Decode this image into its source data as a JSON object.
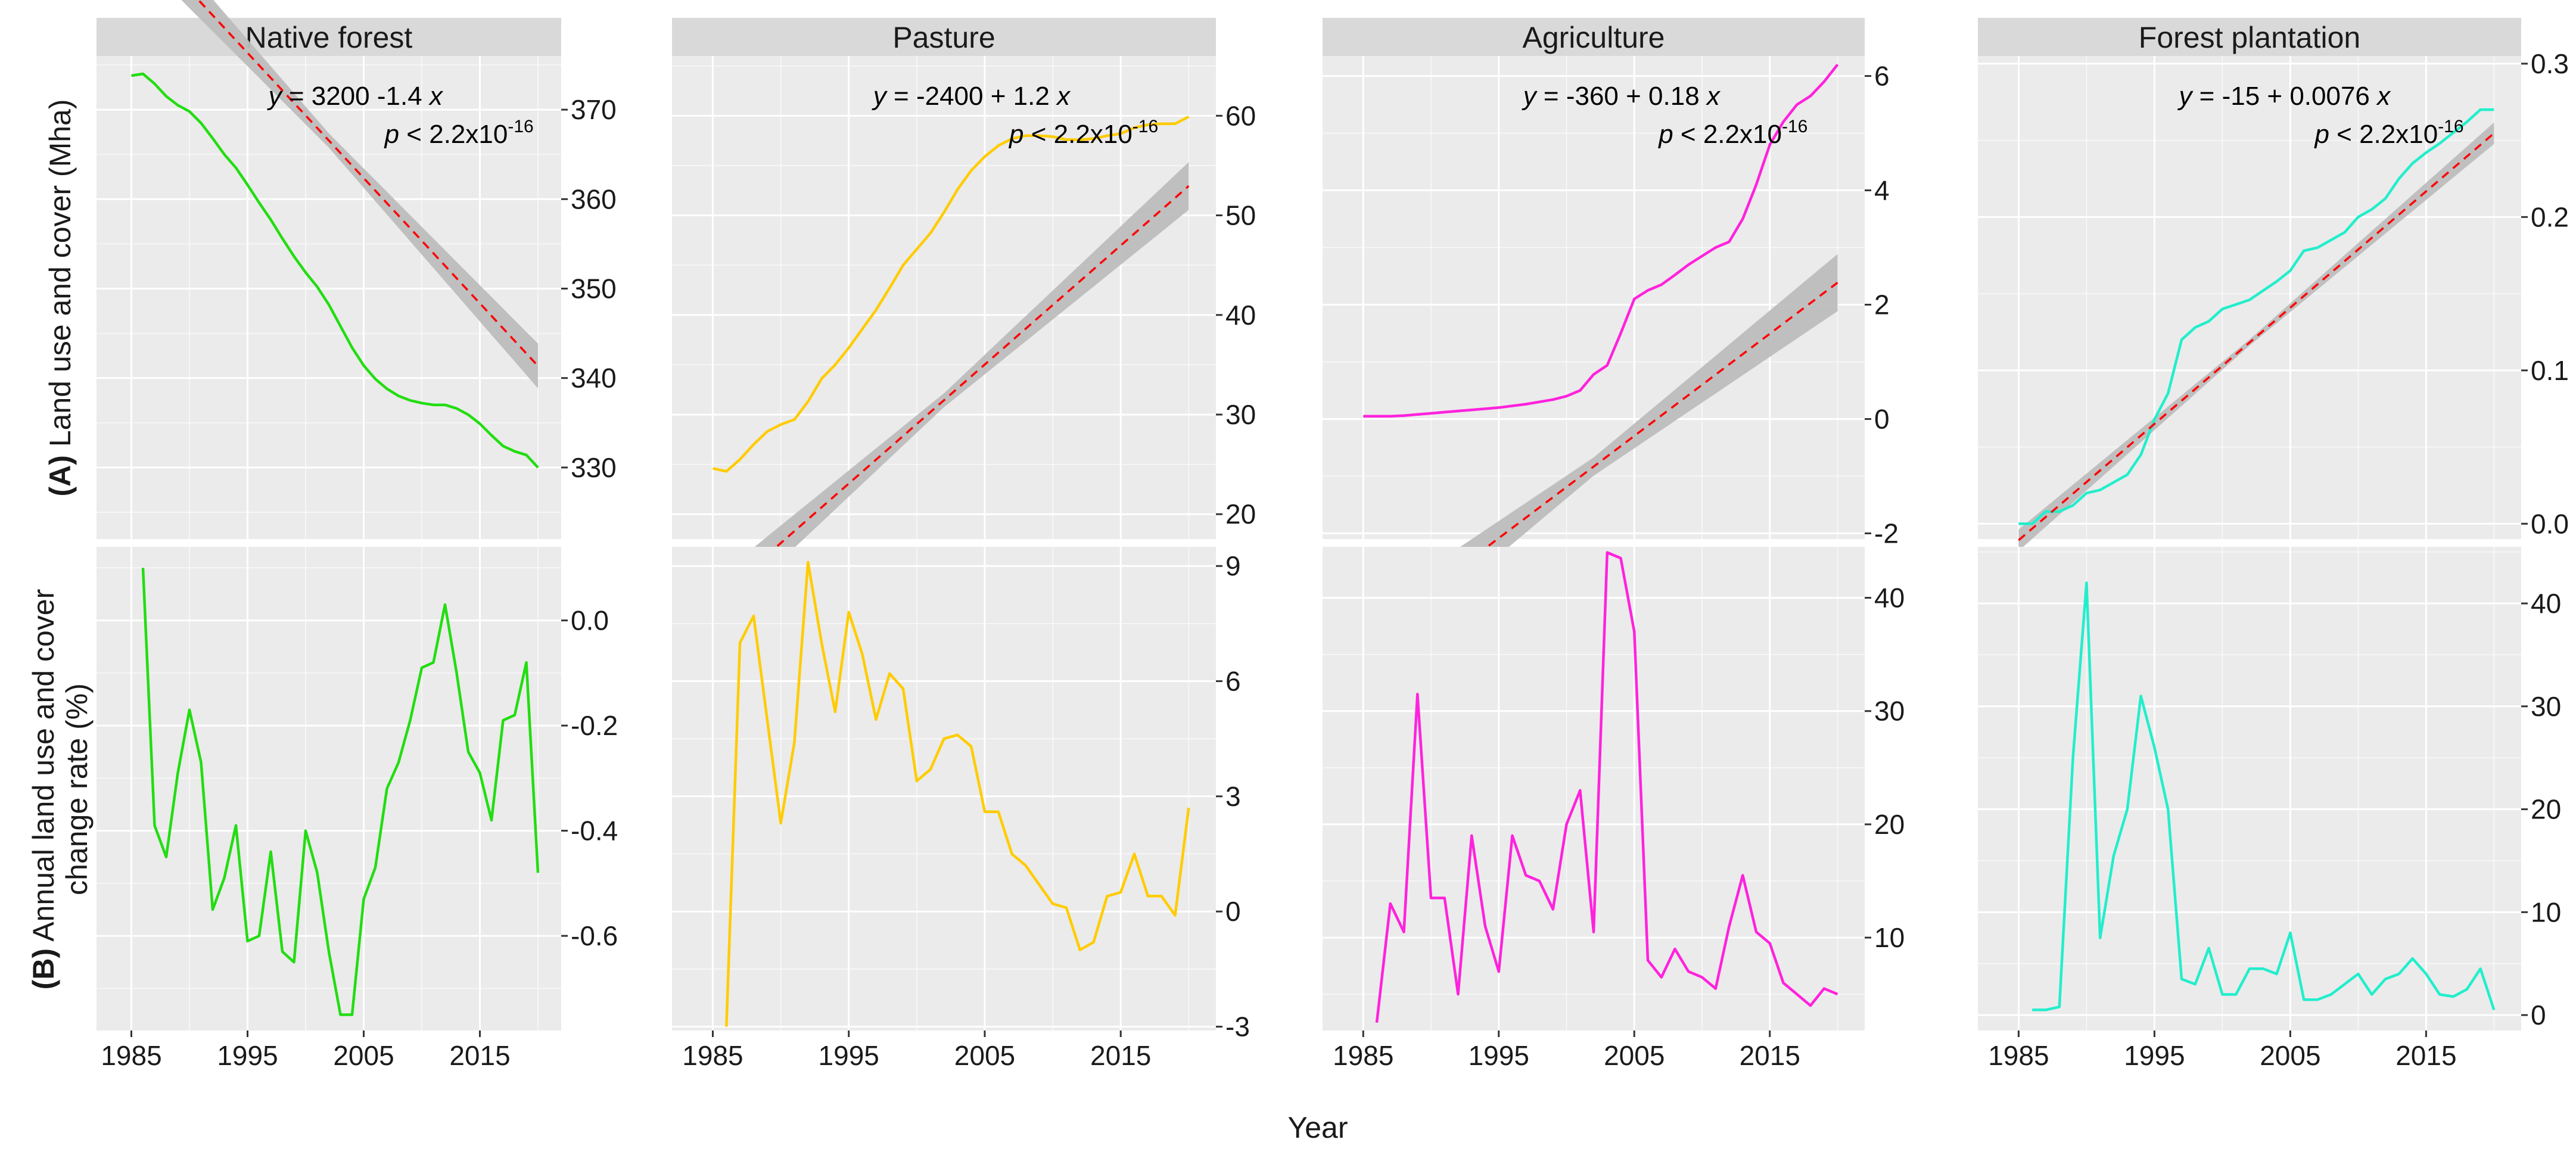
{
  "figure": {
    "x_axis_title": "Year",
    "row_labels": [
      {
        "tag": "(A)",
        "lines": [
          "Land use and cover (Mha)"
        ]
      },
      {
        "tag": "(B)",
        "lines": [
          "Annual land use and cover",
          "change rate (%)"
        ]
      }
    ]
  },
  "colors": {
    "panel_bg": "#ebebeb",
    "grid": "#ffffff",
    "strip_bg": "#d9d9d9",
    "regression_line": "#ff0000",
    "confidence_band": "#bdbdbd"
  },
  "chart_data": [
    {
      "facet": "Native forest",
      "color": "#22dd11",
      "xlim": [
        1982,
        2022
      ],
      "x_ticks": [
        1985,
        1995,
        2005,
        2015
      ],
      "area": {
        "type": "line",
        "ylim": [
          322,
          376
        ],
        "y_ticks": [
          330,
          340,
          350,
          360,
          370
        ],
        "equation_parts": [
          "y",
          " = 3200  -1.4 ",
          "x"
        ],
        "p_value": {
          "prefix": "p",
          "text": " < 2.2x10",
          "exponent": "-16"
        },
        "regression": {
          "intercept": 3169.35,
          "slope": -1.4,
          "band": [
            [
              1985,
              2.5
            ],
            [
              2002,
              0.8
            ],
            [
              2020,
              2.5
            ]
          ]
        },
        "x": [
          1985,
          1986,
          1987,
          1988,
          1989,
          1990,
          1991,
          1992,
          1993,
          1994,
          1995,
          1996,
          1997,
          1998,
          1999,
          2000,
          2001,
          2002,
          2003,
          2004,
          2005,
          2006,
          2007,
          2008,
          2009,
          2010,
          2011,
          2012,
          2013,
          2014,
          2015,
          2016,
          2017,
          2018,
          2019,
          2020
        ],
        "y": [
          373.8,
          374.0,
          372.9,
          371.5,
          370.5,
          369.8,
          368.5,
          366.8,
          365.0,
          363.5,
          361.6,
          359.6,
          357.7,
          355.6,
          353.6,
          351.8,
          350.2,
          348.2,
          345.8,
          343.4,
          341.4,
          339.9,
          338.8,
          338.0,
          337.5,
          337.2,
          337.0,
          337.0,
          336.6,
          335.9,
          334.9,
          333.6,
          332.4,
          331.8,
          331.4,
          330.0
        ]
      },
      "rate": {
        "type": "line",
        "ylim": [
          -0.78,
          0.14
        ],
        "y_ticks": [
          -0.6,
          -0.4,
          -0.2,
          0.0
        ],
        "y_tick_labels": [
          "-0.6",
          "-0.4",
          "-0.2",
          "0.0"
        ],
        "x": [
          1986,
          1987,
          1988,
          1989,
          1990,
          1991,
          1992,
          1993,
          1994,
          1995,
          1996,
          1997,
          1998,
          1999,
          2000,
          2001,
          2002,
          2003,
          2004,
          2005,
          2006,
          2007,
          2008,
          2009,
          2010,
          2011,
          2012,
          2013,
          2014,
          2015,
          2016,
          2017,
          2018,
          2019,
          2020
        ],
        "y": [
          0.1,
          -0.39,
          -0.45,
          -0.29,
          -0.17,
          -0.27,
          -0.55,
          -0.49,
          -0.39,
          -0.61,
          -0.6,
          -0.44,
          -0.63,
          -0.65,
          -0.4,
          -0.48,
          -0.63,
          -0.75,
          -0.75,
          -0.53,
          -0.47,
          -0.32,
          -0.27,
          -0.19,
          -0.09,
          -0.08,
          0.03,
          -0.1,
          -0.25,
          -0.29,
          -0.38,
          -0.19,
          -0.18,
          -0.08,
          -0.48
        ]
      }
    },
    {
      "facet": "Pasture",
      "color": "#ffcc00",
      "xlim": [
        1982,
        2022
      ],
      "x_ticks": [
        1985,
        1995,
        2005,
        2015
      ],
      "area": {
        "type": "line",
        "ylim": [
          17.5,
          66
        ],
        "y_ticks": [
          20,
          30,
          40,
          50,
          60
        ],
        "equation_parts": [
          "y",
          " = -2400 + 1.2 ",
          "x"
        ],
        "p_value": {
          "prefix": "p",
          "text": " < 2.2x10",
          "exponent": "-16"
        },
        "regression": {
          "intercept": -2360.95,
          "slope": 1.195,
          "band": [
            [
              1985,
              2.2
            ],
            [
              2002,
              0.7
            ],
            [
              2020,
              2.4
            ]
          ]
        },
        "x": [
          1985,
          1986,
          1987,
          1988,
          1989,
          1990,
          1991,
          1992,
          1993,
          1994,
          1995,
          1996,
          1997,
          1998,
          1999,
          2000,
          2001,
          2002,
          2003,
          2004,
          2005,
          2006,
          2007,
          2008,
          2009,
          2010,
          2011,
          2012,
          2013,
          2014,
          2015,
          2016,
          2017,
          2018,
          2019,
          2020
        ],
        "y": [
          24.6,
          24.3,
          25.5,
          27.0,
          28.3,
          29.0,
          29.5,
          31.3,
          33.6,
          35.0,
          36.7,
          38.6,
          40.5,
          42.7,
          45.0,
          46.6,
          48.2,
          50.3,
          52.6,
          54.5,
          55.9,
          57.0,
          57.7,
          58.0,
          58.0,
          57.9,
          57.6,
          57.6,
          57.7,
          58.0,
          58.2,
          58.8,
          59.1,
          59.2,
          59.2,
          59.9
        ]
      },
      "rate": {
        "type": "line",
        "ylim": [
          -3.1,
          9.5
        ],
        "y_ticks": [
          -3,
          0,
          3,
          6,
          9
        ],
        "y_tick_labels": [
          "-3",
          "0",
          "3",
          "6",
          "9"
        ],
        "x": [
          1986,
          1987,
          1988,
          1989,
          1990,
          1991,
          1992,
          1993,
          1994,
          1995,
          1996,
          1997,
          1998,
          1999,
          2000,
          2001,
          2002,
          2003,
          2004,
          2005,
          2006,
          2007,
          2008,
          2009,
          2010,
          2011,
          2012,
          2013,
          2014,
          2015,
          2016,
          2017,
          2018,
          2019,
          2020
        ],
        "y": [
          -3.0,
          7.0,
          7.7,
          5.0,
          2.3,
          4.4,
          9.1,
          7.0,
          5.2,
          7.8,
          6.7,
          5.0,
          6.2,
          5.8,
          3.4,
          3.7,
          4.5,
          4.6,
          4.3,
          2.6,
          2.6,
          1.5,
          1.2,
          0.7,
          0.2,
          0.1,
          -1.0,
          -0.8,
          0.4,
          0.5,
          1.5,
          0.4,
          0.4,
          -0.1,
          2.7
        ]
      }
    },
    {
      "facet": "Agriculture",
      "color": "#ff22dd",
      "xlim": [
        1982,
        2022
      ],
      "x_ticks": [
        1985,
        1995,
        2005,
        2015
      ],
      "area": {
        "type": "line",
        "ylim": [
          -2.1,
          6.35
        ],
        "y_ticks": [
          -2,
          0,
          2,
          4,
          6
        ],
        "equation_parts": [
          "y",
          " = -360 + 0.18 ",
          "x"
        ],
        "p_value": {
          "prefix": "p",
          "text": " < 2.2x10",
          "exponent": "-16"
        },
        "regression": {
          "intercept": -358.79,
          "slope": 0.1788,
          "band": [
            [
              1985,
              0.5
            ],
            [
              2002,
              0.16
            ],
            [
              2020,
              0.5
            ]
          ]
        },
        "x": [
          1985,
          1986,
          1987,
          1988,
          1989,
          1990,
          1991,
          1992,
          1993,
          1994,
          1995,
          1996,
          1997,
          1998,
          1999,
          2000,
          2001,
          2002,
          2003,
          2004,
          2005,
          2006,
          2007,
          2008,
          2009,
          2010,
          2011,
          2012,
          2013,
          2014,
          2015,
          2016,
          2017,
          2018,
          2019,
          2020
        ],
        "y": [
          0.05,
          0.05,
          0.05,
          0.06,
          0.08,
          0.1,
          0.12,
          0.14,
          0.16,
          0.18,
          0.2,
          0.23,
          0.26,
          0.3,
          0.34,
          0.4,
          0.5,
          0.78,
          0.94,
          1.5,
          2.1,
          2.25,
          2.35,
          2.52,
          2.7,
          2.85,
          3.0,
          3.1,
          3.5,
          4.1,
          4.8,
          5.2,
          5.5,
          5.65,
          5.9,
          6.2
        ]
      },
      "rate": {
        "type": "line",
        "ylim": [
          1.8,
          44.5
        ],
        "y_ticks": [
          10,
          20,
          30,
          40
        ],
        "y_tick_labels": [
          "10",
          "20",
          "30",
          "40"
        ],
        "x": [
          1986,
          1987,
          1988,
          1989,
          1990,
          1991,
          1992,
          1993,
          1994,
          1995,
          1996,
          1997,
          1998,
          1999,
          2000,
          2001,
          2002,
          2003,
          2004,
          2005,
          2006,
          2007,
          2008,
          2009,
          2010,
          2011,
          2012,
          2013,
          2014,
          2015,
          2016,
          2017,
          2018,
          2019,
          2020
        ],
        "y": [
          2.5,
          13.0,
          10.5,
          31.5,
          13.5,
          13.5,
          5.0,
          19.0,
          11.0,
          7.0,
          19.0,
          15.5,
          15.0,
          12.5,
          20.0,
          23.0,
          10.5,
          44.0,
          43.5,
          37.0,
          8.0,
          6.5,
          9.0,
          7.0,
          6.5,
          5.5,
          11.0,
          15.5,
          10.5,
          9.5,
          6.0,
          5.0,
          4.0,
          5.5,
          5.0
        ]
      }
    },
    {
      "facet": "Forest plantation",
      "color": "#22eecc",
      "xlim": [
        1982,
        2022
      ],
      "x_ticks": [
        1985,
        1995,
        2005,
        2015
      ],
      "area": {
        "type": "line",
        "ylim": [
          -0.01,
          0.305
        ],
        "y_ticks": [
          0.0,
          0.1,
          0.2,
          0.3
        ],
        "y_tick_labels": [
          "0.0",
          "0.1",
          "0.2",
          "0.3"
        ],
        "equation_parts": [
          "y",
          " = -15 + 0.0076 ",
          "x"
        ],
        "p_value": {
          "prefix": "p",
          "text": " < 2.2x10",
          "exponent": "-16"
        },
        "regression": {
          "intercept": -15.061,
          "slope": 0.007582,
          "band": [
            [
              1985,
              0.007
            ],
            [
              2002,
              0.002
            ],
            [
              2020,
              0.007
            ]
          ]
        },
        "x": [
          1985,
          1986,
          1987,
          1988,
          1989,
          1990,
          1991,
          1992,
          1993,
          1994,
          1995,
          1996,
          1997,
          1998,
          1999,
          2000,
          2001,
          2002,
          2003,
          2004,
          2005,
          2006,
          2007,
          2008,
          2009,
          2010,
          2011,
          2012,
          2013,
          2014,
          2015,
          2016,
          2017,
          2018,
          2019,
          2020
        ],
        "y": [
          0.0,
          0.0,
          0.008,
          0.008,
          0.012,
          0.02,
          0.022,
          0.027,
          0.032,
          0.045,
          0.068,
          0.085,
          0.12,
          0.128,
          0.132,
          0.14,
          0.143,
          0.146,
          0.152,
          0.158,
          0.165,
          0.178,
          0.18,
          0.185,
          0.19,
          0.2,
          0.205,
          0.212,
          0.225,
          0.235,
          0.242,
          0.248,
          0.255,
          0.262,
          0.27,
          0.27
        ]
      },
      "rate": {
        "type": "line",
        "ylim": [
          -1.5,
          45.5
        ],
        "y_ticks": [
          0,
          10,
          20,
          30,
          40
        ],
        "y_tick_labels": [
          "0",
          "10",
          "20",
          "30",
          "40"
        ],
        "x": [
          1986,
          1987,
          1988,
          1989,
          1990,
          1991,
          1992,
          1993,
          1994,
          1995,
          1996,
          1997,
          1998,
          1999,
          2000,
          2001,
          2002,
          2003,
          2004,
          2005,
          2006,
          2007,
          2008,
          2009,
          2010,
          2011,
          2012,
          2013,
          2014,
          2015,
          2016,
          2017,
          2018,
          2019,
          2020
        ],
        "y": [
          0.5,
          0.5,
          0.8,
          25.0,
          42.0,
          7.5,
          15.5,
          20.0,
          31.0,
          26.0,
          20.0,
          3.5,
          3.0,
          6.5,
          2.0,
          2.0,
          4.5,
          4.5,
          4.0,
          8.0,
          1.5,
          1.5,
          2.0,
          3.0,
          4.0,
          2.0,
          3.5,
          4.0,
          5.5,
          4.0,
          2.0,
          1.8,
          2.5,
          4.5,
          0.5
        ]
      }
    }
  ]
}
